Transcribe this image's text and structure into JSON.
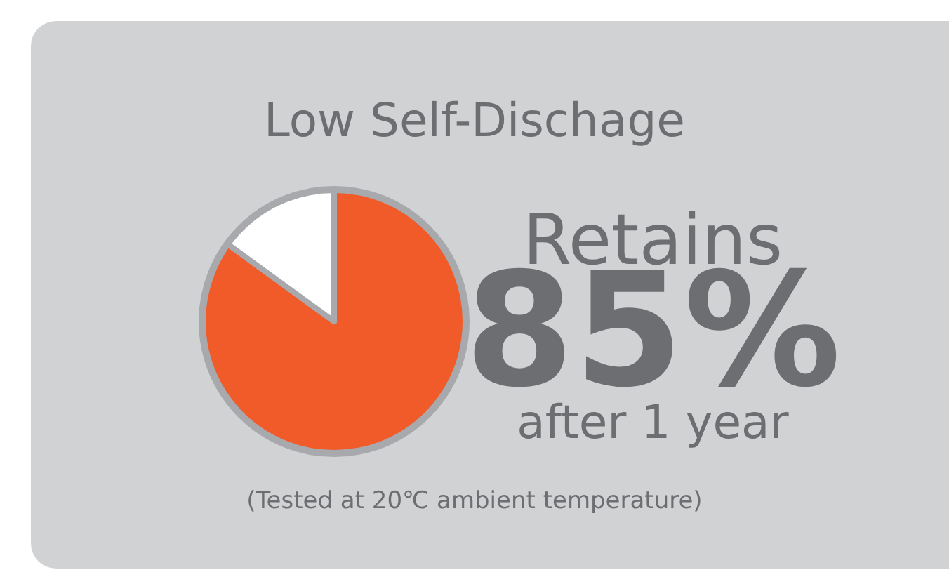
{
  "chart_data": {
    "type": "pie",
    "title": "Low Self-Dischage",
    "categories": [
      null,
      null
    ],
    "values": [
      85,
      15
    ],
    "colors": [
      "#f15a29",
      "#ffffff"
    ],
    "annotations": [
      "Retains",
      "85%",
      "after 1 year",
      "(Tested at 20℃ ambient temperature)"
    ]
  }
}
